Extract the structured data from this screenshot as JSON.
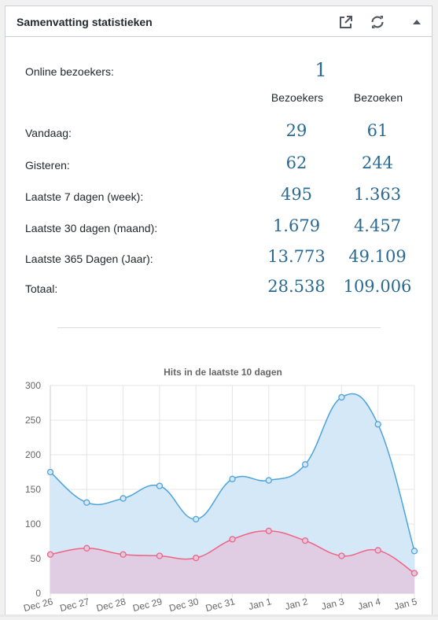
{
  "widget": {
    "title": "Samenvatting statistieken",
    "icons": [
      "external-link-icon",
      "refresh-icon",
      "collapse-arrow-icon"
    ]
  },
  "online": {
    "label": "Online bezoekers:",
    "value": "1"
  },
  "columns": {
    "visitors": "Bezoekers",
    "visits": "Bezoeken"
  },
  "rows": [
    {
      "label": "Vandaag:",
      "visitors": "29",
      "visits": "61"
    },
    {
      "label": "Gisteren:",
      "visitors": "62",
      "visits": "244"
    },
    {
      "label": "Laatste 7 dagen (week):",
      "visitors": "495",
      "visits": "1.363"
    },
    {
      "label": "Laatste 30 dagen (maand):",
      "visitors": "1.679",
      "visits": "4.457"
    },
    {
      "label": "Laatste 365 Dagen (Jaar):",
      "visitors": "13.773",
      "visits": "49.109"
    },
    {
      "label": "Totaal:",
      "visitors": "28.538",
      "visits": "109.006"
    }
  ],
  "colors": {
    "number": "#2a6a92",
    "visits_line": "#4da3db",
    "visits_fill": "#d4e8f8",
    "visitors_line": "#f06384",
    "visitors_fill": "#e2c8df"
  },
  "chart_data": {
    "type": "area",
    "title": "Hits in de laatste 10 dagen",
    "categories": [
      "Dec 26",
      "Dec 27",
      "Dec 28",
      "Dec 29",
      "Dec 30",
      "Dec 31",
      "Jan 1",
      "Jan 2",
      "Jan 3",
      "Jan 4",
      "Jan 5"
    ],
    "series": [
      {
        "values": [
          175,
          131,
          137,
          155,
          107,
          165,
          163,
          186,
          283,
          244,
          61
        ]
      },
      {
        "values": [
          56,
          65,
          56,
          54,
          51,
          78,
          90,
          76,
          54,
          62,
          29
        ]
      }
    ],
    "ylim": [
      0,
      300
    ],
    "yticks": [
      0,
      50,
      100,
      150,
      200,
      250,
      300
    ],
    "grid": true
  }
}
